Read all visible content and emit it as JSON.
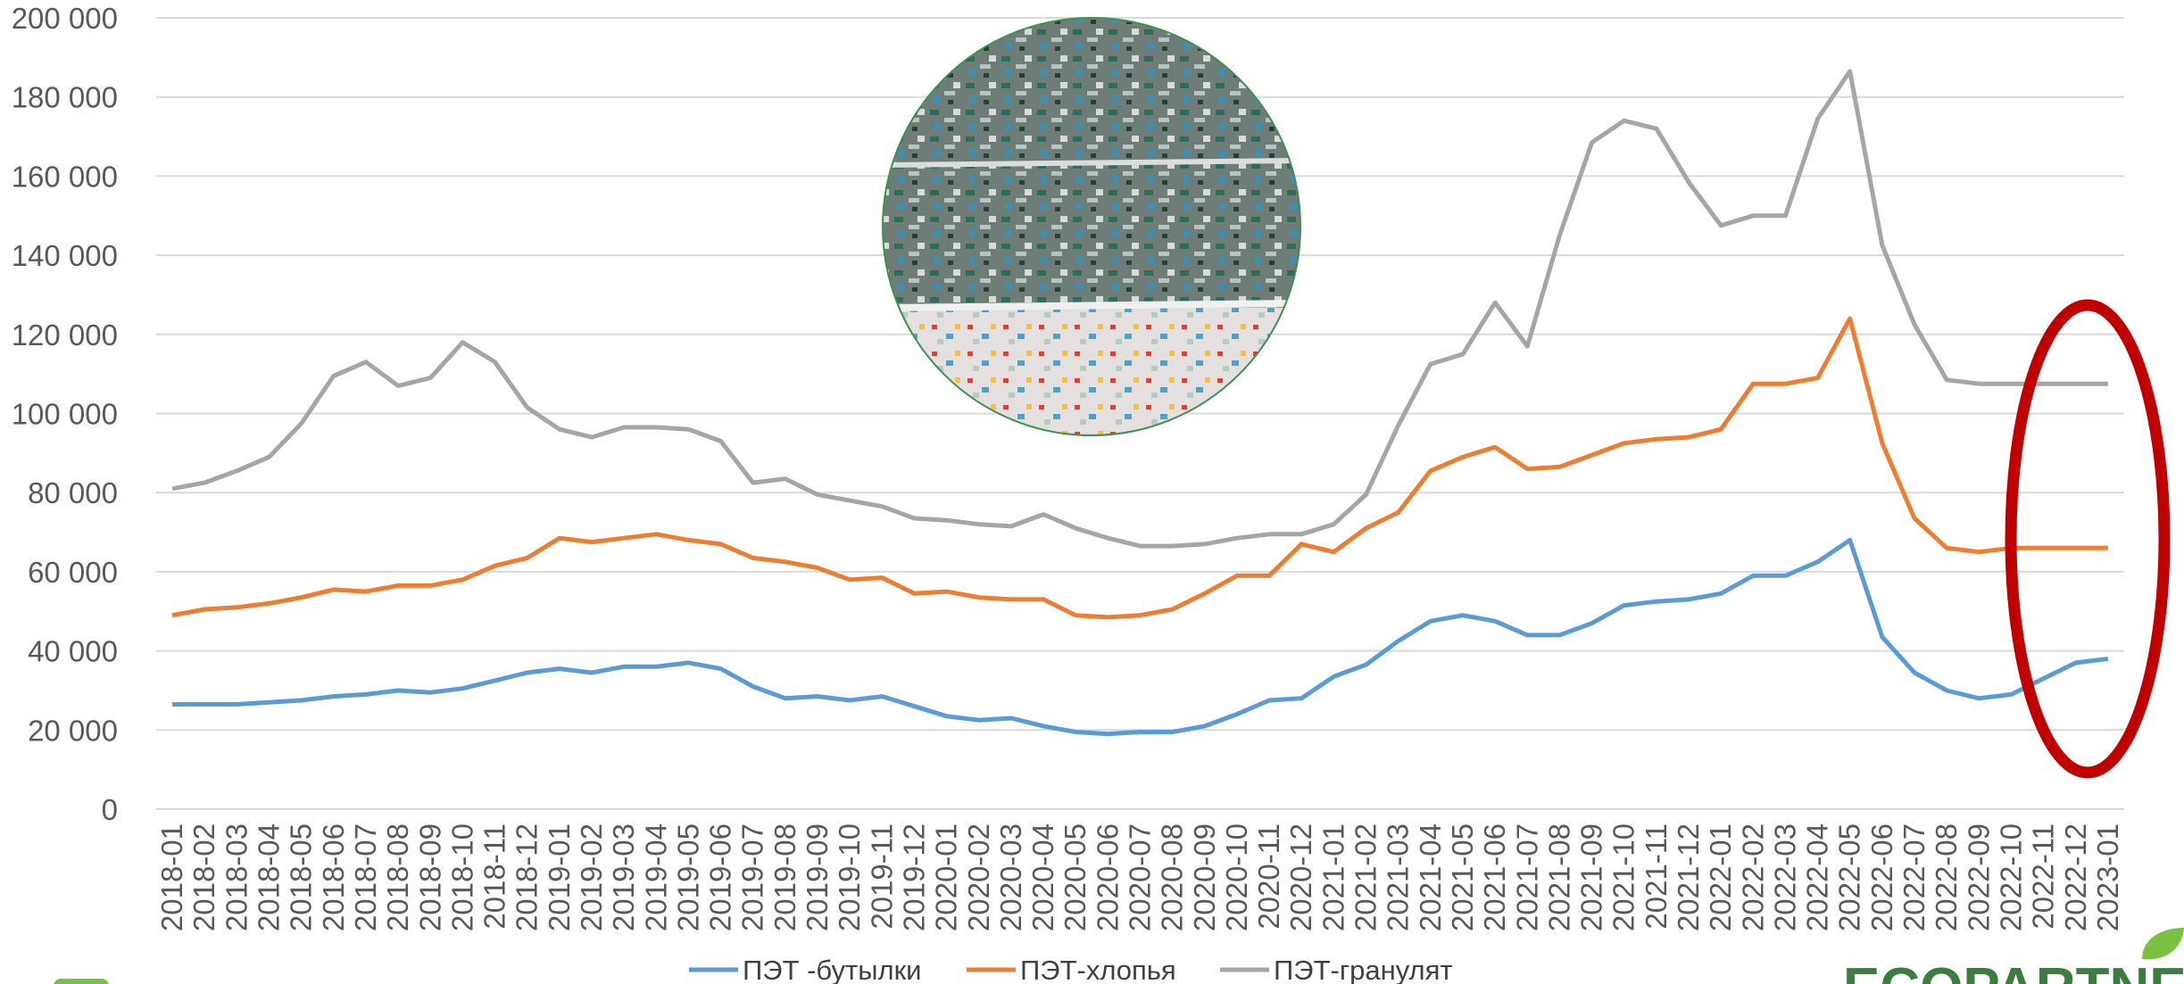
{
  "chart_data": {
    "type": "line",
    "categories": [
      "2018-01",
      "2018-02",
      "2018-03",
      "2018-04",
      "2018-05",
      "2018-06",
      "2018-07",
      "2018-08",
      "2018-09",
      "2018-10",
      "2018-11",
      "2018-12",
      "2019-01",
      "2019-02",
      "2019-03",
      "2019-04",
      "2019-05",
      "2019-06",
      "2019-07",
      "2019-08",
      "2019-09",
      "2019-10",
      "2019-11",
      "2019-12",
      "2020-01",
      "2020-02",
      "2020-03",
      "2020-04",
      "2020-05",
      "2020-06",
      "2020-07",
      "2020-08",
      "2020-09",
      "2020-10",
      "2020-11",
      "2020-12",
      "2021-01",
      "2021-02",
      "2021-03",
      "2021-04",
      "2021-05",
      "2021-06",
      "2021-07",
      "2021-08",
      "2021-09",
      "2021-10",
      "2021-11",
      "2021-12",
      "2022-01",
      "2022-02",
      "2022-03",
      "2022-04",
      "2022-05",
      "2022-06",
      "2022-07",
      "2022-08",
      "2022-09",
      "2022-10",
      "2022-11",
      "2022-12",
      "2023-01"
    ],
    "series": [
      {
        "name": "ПЭТ -бутылки",
        "color": "#5b9bd5",
        "values": [
          26500,
          26500,
          26500,
          27000,
          27500,
          28500,
          29000,
          30000,
          29500,
          30500,
          32500,
          34500,
          35500,
          34500,
          36000,
          36000,
          37000,
          35500,
          31000,
          28000,
          28500,
          27500,
          28500,
          26000,
          23500,
          22500,
          23000,
          21000,
          19500,
          19000,
          19500,
          19500,
          21000,
          24000,
          27500,
          28000,
          33500,
          36500,
          42500,
          47500,
          49000,
          47500,
          44000,
          44000,
          47000,
          51500,
          52500,
          53000,
          54500,
          59000,
          59000,
          62500,
          68000,
          43500,
          34500,
          30000,
          28000,
          29000,
          33000,
          37000,
          38000
        ]
      },
      {
        "name": "ПЭТ-хлопья",
        "color": "#ed7d31",
        "values": [
          49000,
          50500,
          51000,
          52000,
          53500,
          55500,
          55000,
          56500,
          56500,
          58000,
          61500,
          63500,
          68500,
          67500,
          68500,
          69500,
          68000,
          67000,
          63500,
          62500,
          61000,
          58000,
          58500,
          54500,
          55000,
          53500,
          53000,
          53000,
          49000,
          48500,
          49000,
          50500,
          54500,
          59000,
          59000,
          67000,
          65000,
          71000,
          75000,
          85500,
          89000,
          91500,
          86000,
          86500,
          89500,
          92500,
          93500,
          94000,
          96000,
          107500,
          107500,
          109000,
          124000,
          92500,
          73500,
          66000,
          65000,
          66000,
          66000,
          66000,
          66000
        ]
      },
      {
        "name": "ПЭТ-гранулят",
        "color": "#a5a5a5",
        "values": [
          81000,
          82500,
          85500,
          89000,
          97500,
          109500,
          113000,
          107000,
          109000,
          118000,
          113000,
          101500,
          96000,
          94000,
          96500,
          96500,
          96000,
          93000,
          82500,
          83500,
          79500,
          78000,
          76500,
          73500,
          73000,
          72000,
          71500,
          74500,
          71000,
          68500,
          66500,
          66500,
          67000,
          68500,
          69500,
          69500,
          72000,
          79500,
          97000,
          112500,
          115000,
          128000,
          117000,
          145000,
          168500,
          174000,
          172000,
          158500,
          147500,
          150000,
          150000,
          174500,
          186500,
          142500,
          122500,
          108500,
          107500,
          107500,
          107500,
          107500,
          107500
        ]
      }
    ],
    "ylim": [
      0,
      200000
    ],
    "yticks": [
      0,
      {
        "value": 20000,
        "label": "20 000"
      },
      {
        "value": 40000,
        "label": "40 000"
      },
      {
        "value": 60000,
        "label": "60 000"
      },
      {
        "value": 80000,
        "label": "80 000"
      },
      {
        "value": 100000,
        "label": "100 000"
      },
      {
        "value": 120000,
        "label": "120 000"
      },
      {
        "value": 140000,
        "label": "140 000"
      },
      {
        "value": 160000,
        "label": "160 000"
      },
      {
        "value": 180000,
        "label": "180 000"
      },
      {
        "value": 200000,
        "label": "200 000"
      }
    ],
    "grid": true,
    "legend": "bottom"
  },
  "brand": "ECOPARTNERS"
}
